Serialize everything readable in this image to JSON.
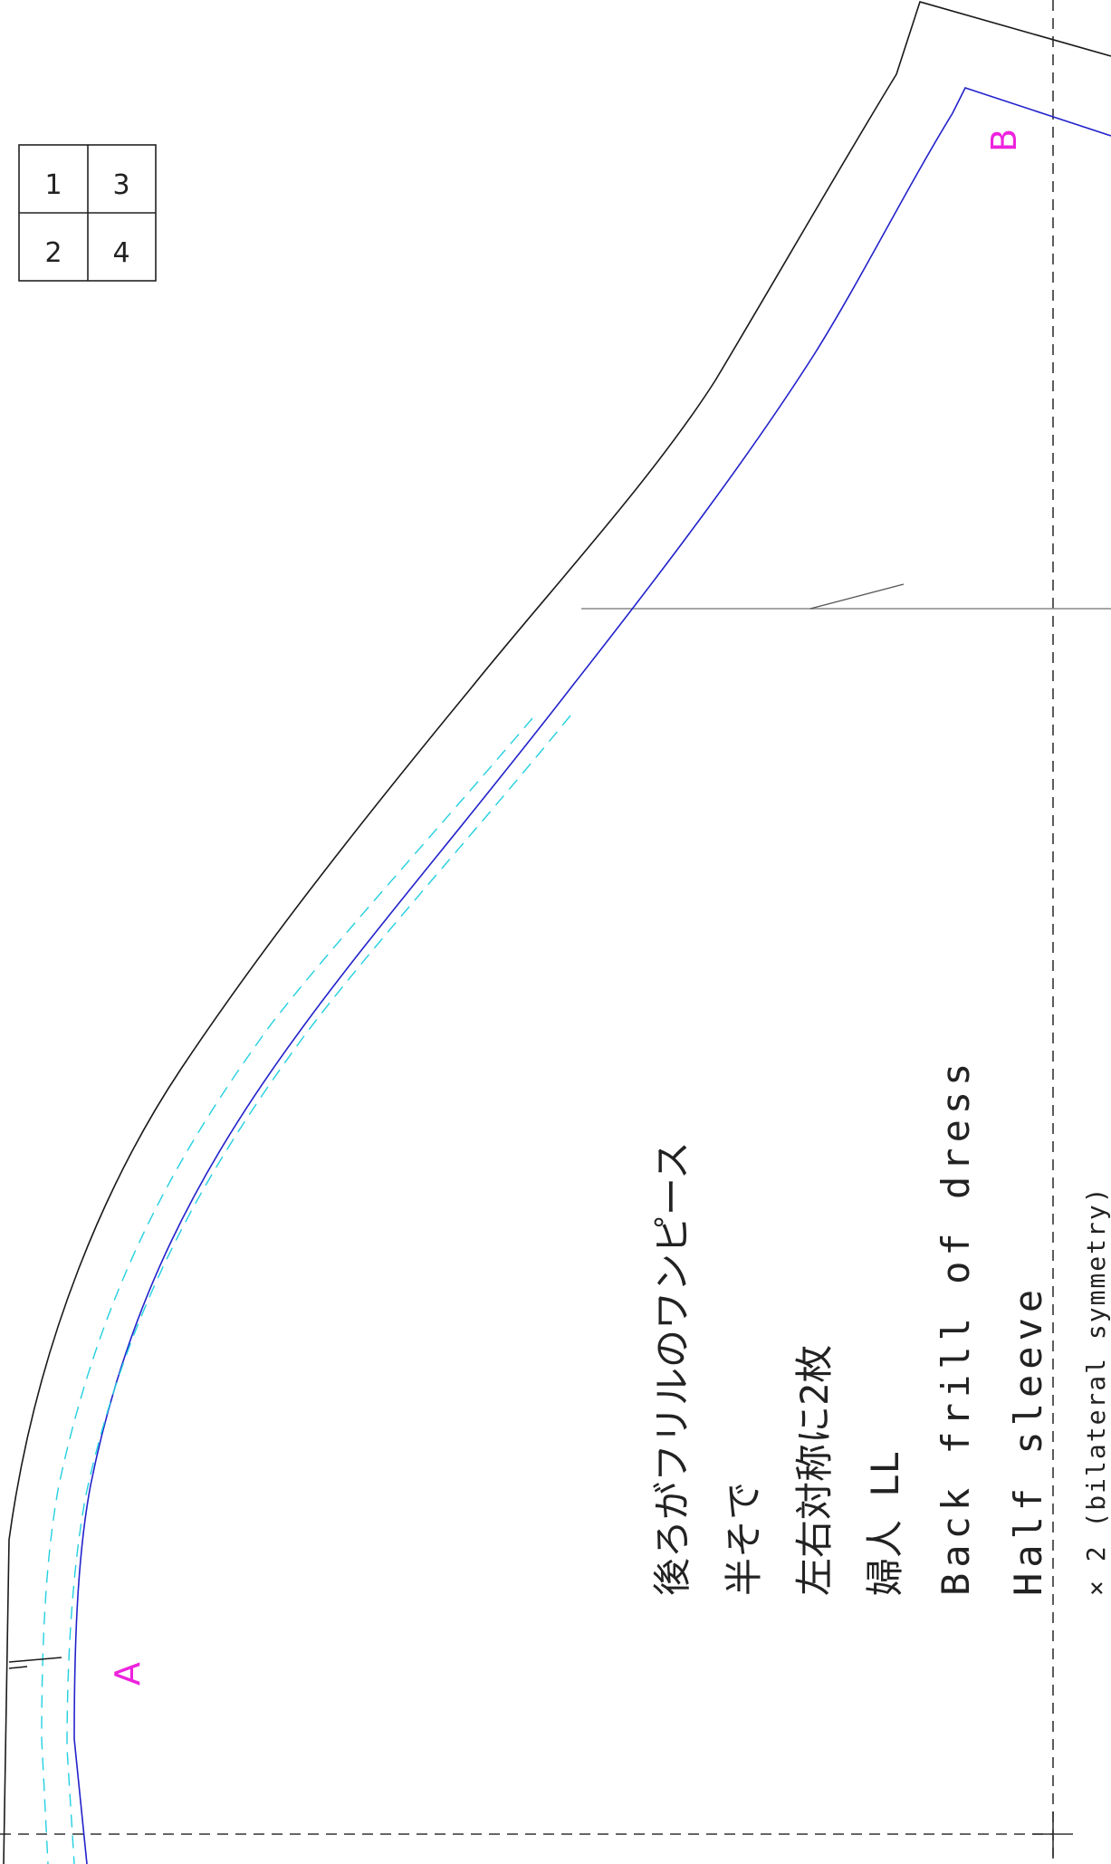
{
  "page_grid": {
    "cells": [
      "1",
      "3",
      "2",
      "4"
    ]
  },
  "markers": {
    "a": "A",
    "b": "B"
  },
  "labels": {
    "line1": "後ろがフリルのワンピース",
    "line2": "半そで",
    "line3": "左右対称に2枚",
    "line4": "婦人 LL",
    "line5": "Back frill of dress",
    "line6": "Half sleeve",
    "line7": "× 2 (bilateral symmetry)"
  },
  "colors": {
    "cut_line": "#1a1a1a",
    "seam_line": "#2222cc",
    "stitch_line": "#22d0e0",
    "marker": "#ee22dd",
    "fold_line": "#333333"
  }
}
